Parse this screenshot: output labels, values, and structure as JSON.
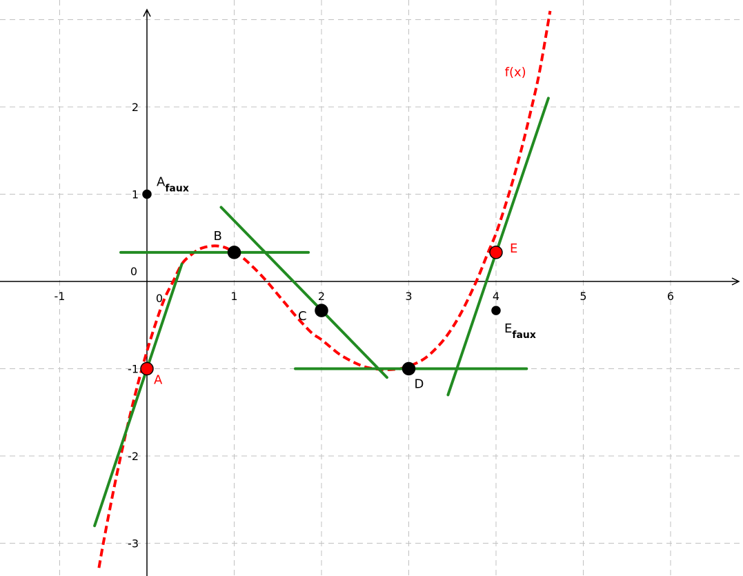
{
  "chart_data": {
    "type": "line",
    "title": "",
    "xlabel": "",
    "ylabel": "",
    "xlim": [
      -1.7,
      6.8
    ],
    "ylim": [
      -3.35,
      3.15
    ],
    "grid": true,
    "xticks": [
      -1,
      1,
      2,
      3,
      4,
      5,
      6
    ],
    "yticks": [
      -3,
      -2,
      -1,
      1,
      2
    ],
    "origin_label": "0",
    "origin_label_x": "0",
    "colors": {
      "curve": "#ff0000",
      "tangent": "#228b22",
      "point_red": "#ff0000",
      "point_black": "#000000",
      "label_red": "#ff0000",
      "label_black": "#000000",
      "grid": "#c0c0c0",
      "axis": "#000000"
    },
    "curve": {
      "label": "f(x)",
      "label_at": [
        4.1,
        2.35
      ],
      "color": "#ff0000",
      "style": "dashed",
      "domain": [
        -0.55,
        4.62
      ],
      "points": [
        [
          -0.55,
          -3.282
        ],
        [
          -0.5,
          -3.0
        ],
        [
          -0.4,
          -2.48
        ],
        [
          -0.3,
          -2.0
        ],
        [
          -0.2,
          -1.56
        ],
        [
          -0.1,
          -1.16
        ],
        [
          0.0,
          -0.8
        ],
        [
          0.1,
          -0.48
        ],
        [
          0.2,
          -0.2
        ],
        [
          0.3,
          0.0
        ],
        [
          0.4,
          0.2
        ],
        [
          0.5,
          0.3
        ],
        [
          0.6,
          0.37
        ],
        [
          0.7,
          0.4
        ],
        [
          0.8,
          0.407
        ],
        [
          0.9,
          0.387
        ],
        [
          1.0,
          0.333
        ],
        [
          1.1,
          0.27
        ],
        [
          1.2,
          0.18
        ],
        [
          1.3,
          0.08
        ],
        [
          1.4,
          -0.03
        ],
        [
          1.5,
          -0.15
        ],
        [
          1.6,
          -0.27
        ],
        [
          1.7,
          -0.39
        ],
        [
          1.8,
          -0.5
        ],
        [
          1.9,
          -0.6
        ],
        [
          2.0,
          -0.667
        ],
        [
          2.1,
          -0.75
        ],
        [
          2.2,
          -0.83
        ],
        [
          2.3,
          -0.89
        ],
        [
          2.4,
          -0.94
        ],
        [
          2.5,
          -0.98
        ],
        [
          2.6,
          -1.0
        ],
        [
          2.7,
          -1.01
        ],
        [
          2.8,
          -1.01
        ],
        [
          2.9,
          -1.0
        ],
        [
          3.0,
          -0.97
        ],
        [
          3.1,
          -0.93
        ],
        [
          3.2,
          -0.87
        ],
        [
          3.3,
          -0.78
        ],
        [
          3.4,
          -0.67
        ],
        [
          3.5,
          -0.53
        ],
        [
          3.6,
          -0.36
        ],
        [
          3.7,
          -0.16
        ],
        [
          3.8,
          0.06
        ],
        [
          3.9,
          0.31
        ],
        [
          4.0,
          0.55
        ],
        [
          4.1,
          0.85
        ],
        [
          4.2,
          1.18
        ],
        [
          4.3,
          1.55
        ],
        [
          4.4,
          1.96
        ],
        [
          4.5,
          2.41
        ],
        [
          4.62,
          3.1
        ]
      ]
    },
    "tangents": [
      {
        "from": [
          -0.6,
          -2.8
        ],
        "to": [
          0.4,
          0.2
        ]
      },
      {
        "from": [
          -0.3,
          0.333
        ],
        "to": [
          1.85,
          0.333
        ]
      },
      {
        "from": [
          0.85,
          0.85
        ],
        "to": [
          2.75,
          -1.1
        ]
      },
      {
        "from": [
          1.7,
          -1.0
        ],
        "to": [
          4.35,
          -1.0
        ]
      },
      {
        "from": [
          3.45,
          -1.3
        ],
        "to": [
          4.6,
          2.1
        ]
      }
    ],
    "points": [
      {
        "name": "A",
        "x": 0,
        "y": -1,
        "fill": "#ff0000",
        "label": "A",
        "sub": "",
        "label_color": "#ff0000",
        "big": true
      },
      {
        "name": "B",
        "x": 1,
        "y": 0.333,
        "fill": "#000000",
        "label": "B",
        "sub": "",
        "label_color": "#000000",
        "big": true
      },
      {
        "name": "C",
        "x": 2,
        "y": -0.333,
        "fill": "#000000",
        "label": "C",
        "sub": "",
        "label_color": "#000000",
        "big": true
      },
      {
        "name": "D",
        "x": 3,
        "y": -1,
        "fill": "#000000",
        "label": "D",
        "sub": "",
        "label_color": "#000000",
        "big": true
      },
      {
        "name": "E",
        "x": 4,
        "y": 0.333,
        "fill": "#ff0000",
        "label": "E",
        "sub": "",
        "label_color": "#ff0000",
        "big": true
      },
      {
        "name": "A-faux",
        "x": 0,
        "y": 1,
        "fill": "#000000",
        "label": "A",
        "sub": "faux",
        "label_color": "#000000",
        "big": false
      },
      {
        "name": "E-faux",
        "x": 4,
        "y": -0.333,
        "fill": "#000000",
        "label": "E",
        "sub": "faux",
        "label_color": "#000000",
        "big": false
      }
    ]
  }
}
